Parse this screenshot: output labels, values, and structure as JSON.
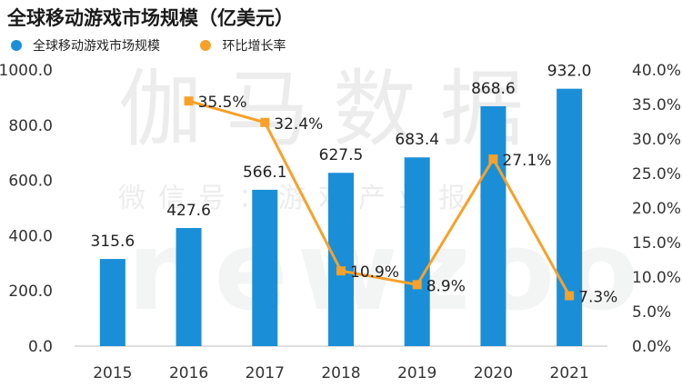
{
  "title": "全球移动游戏市场规模（亿美元）",
  "watermark": {
    "line1": "伽马数据",
    "line2": "微信号：游戏产业报告",
    "line3": "newzoo"
  },
  "colors": {
    "bar": "#1a8fd8",
    "line": "#f7a12a"
  },
  "chart_data": {
    "type": "bar",
    "title": "全球移动游戏市场规模（亿美元）",
    "categories": [
      "2015",
      "2016",
      "2017",
      "2018",
      "2019",
      "2020",
      "2021"
    ],
    "series": [
      {
        "name": "全球移动游戏市场规模",
        "type": "bar",
        "axis": "left",
        "values": [
          315.6,
          427.6,
          566.1,
          627.5,
          683.4,
          868.6,
          932.0
        ],
        "labels": [
          "315.6",
          "427.6",
          "566.1",
          "627.5",
          "683.4",
          "868.6",
          "932.0"
        ]
      },
      {
        "name": "环比增长率",
        "type": "line",
        "axis": "right",
        "values": [
          null,
          35.5,
          32.4,
          10.9,
          8.9,
          27.1,
          7.3
        ],
        "labels": [
          "",
          "35.5%",
          "32.4%",
          "10.9%",
          "8.9%",
          "27.1%",
          "7.3%"
        ]
      }
    ],
    "y_left": {
      "min": 0,
      "max": 1000,
      "ticks": [
        "0.0",
        "200.0",
        "400.0",
        "600.0",
        "800.0",
        "1000.0"
      ]
    },
    "y_right": {
      "min": 0,
      "max": 40,
      "ticks": [
        "0.0%",
        "5.0%",
        "10.0%",
        "15.0%",
        "20.0%",
        "25.0%",
        "30.0%",
        "35.0%",
        "40.0%"
      ]
    },
    "grid": false,
    "legend": "top-left"
  }
}
